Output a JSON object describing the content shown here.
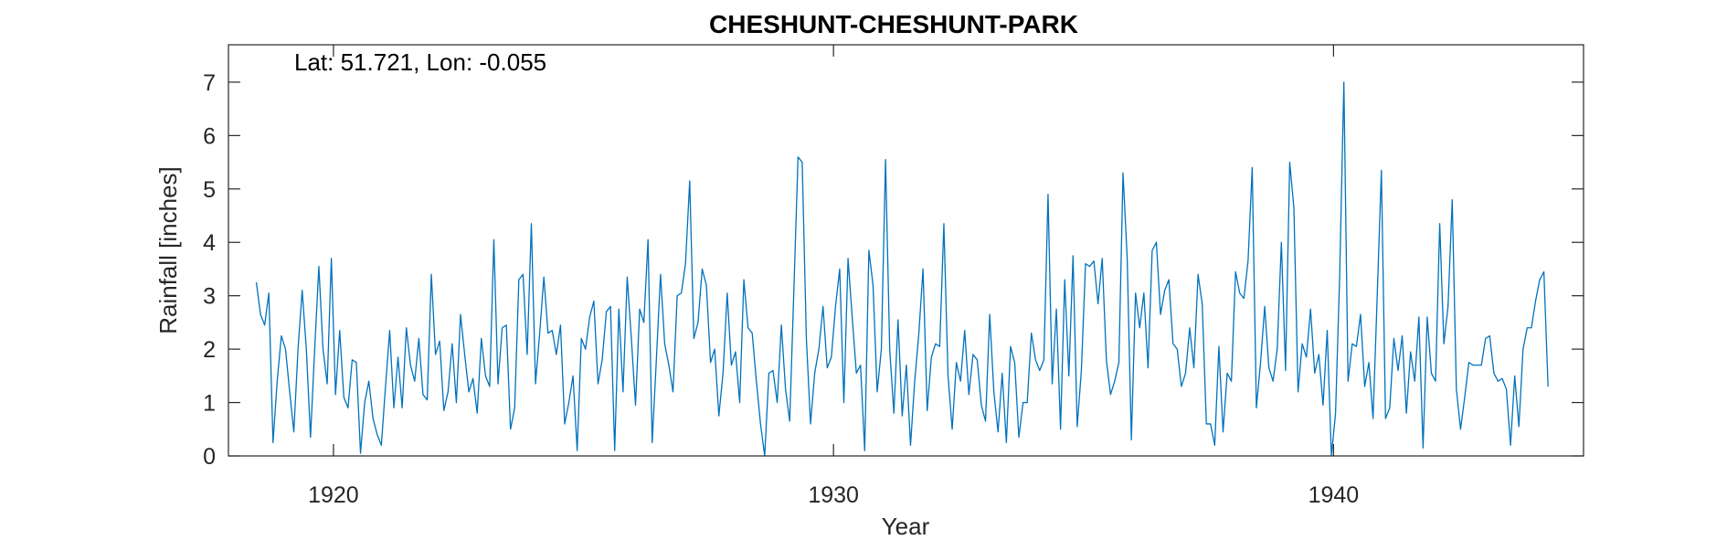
{
  "chart_data": {
    "type": "line",
    "title": "CHESHUNT-CHESHUNT-PARK",
    "xlabel": "Year",
    "ylabel": "Rainfall [inches]",
    "annotation": "Lat: 51.721, Lon: -0.055",
    "xlim": [
      1917.9,
      1945
    ],
    "ylim": [
      0,
      7.7
    ],
    "xticks": [
      1920,
      1930,
      1940
    ],
    "yticks": [
      0,
      1,
      2,
      3,
      4,
      5,
      6,
      7
    ],
    "grid": false,
    "series_color": "#0072bd",
    "series": [
      {
        "x_start": 1918.458,
        "x_step": 0.08333,
        "values": [
          3.25,
          2.65,
          2.45,
          3.05,
          0.25,
          1.4,
          2.25,
          2.0,
          1.2,
          0.45,
          2.0,
          3.1,
          2.0,
          0.35,
          2.0,
          3.55,
          2.0,
          1.35,
          3.7,
          1.15,
          2.35,
          1.1,
          0.9,
          1.8,
          1.75,
          0.05,
          1.0,
          1.4,
          0.7,
          0.4,
          0.2,
          1.3,
          2.35,
          0.9,
          1.85,
          0.9,
          2.4,
          1.7,
          1.4,
          2.2,
          1.15,
          1.05,
          3.4,
          1.9,
          2.15,
          0.85,
          1.2,
          2.1,
          1.0,
          2.65,
          1.9,
          1.2,
          1.45,
          0.8,
          2.2,
          1.5,
          1.3,
          4.05,
          1.35,
          2.4,
          2.45,
          0.5,
          0.9,
          3.3,
          3.4,
          1.9,
          4.35,
          1.35,
          2.3,
          3.35,
          2.3,
          2.35,
          1.9,
          2.45,
          0.6,
          1.0,
          1.5,
          0.1,
          2.2,
          2.0,
          2.6,
          2.9,
          1.35,
          1.8,
          2.7,
          2.8,
          0.1,
          2.75,
          1.2,
          3.35,
          2.2,
          0.95,
          2.75,
          2.5,
          4.05,
          0.25,
          1.8,
          3.4,
          2.1,
          1.7,
          1.2,
          3.0,
          3.05,
          3.6,
          5.15,
          2.2,
          2.5,
          3.5,
          3.2,
          1.75,
          2.0,
          0.75,
          1.55,
          3.05,
          1.7,
          1.95,
          1.0,
          3.3,
          2.4,
          2.3,
          1.4,
          0.6,
          0.0,
          1.55,
          1.6,
          1.0,
          2.45,
          1.25,
          0.65,
          3.1,
          5.6,
          5.5,
          2.2,
          0.6,
          1.55,
          2.0,
          2.8,
          1.65,
          1.85,
          2.8,
          3.5,
          1.0,
          3.7,
          2.6,
          1.55,
          1.7,
          0.1,
          3.85,
          3.2,
          1.2,
          2.0,
          5.55,
          2.0,
          0.8,
          2.55,
          0.75,
          1.7,
          0.2,
          1.4,
          2.3,
          3.5,
          0.85,
          1.85,
          2.1,
          2.05,
          4.35,
          1.5,
          0.5,
          1.75,
          1.4,
          2.35,
          1.15,
          1.9,
          1.8,
          0.95,
          0.65,
          2.65,
          1.2,
          0.45,
          1.55,
          0.25,
          2.05,
          1.75,
          0.35,
          1.0,
          1.0,
          2.3,
          1.8,
          1.6,
          1.8,
          4.9,
          1.35,
          2.75,
          0.5,
          3.3,
          1.5,
          3.75,
          0.55,
          1.6,
          3.6,
          3.55,
          3.65,
          2.85,
          3.7,
          1.8,
          1.15,
          1.4,
          1.75,
          5.3,
          3.7,
          0.3,
          3.05,
          2.4,
          3.05,
          1.65,
          3.85,
          4.0,
          2.65,
          3.1,
          3.3,
          2.1,
          2.0,
          1.3,
          1.55,
          2.4,
          1.65,
          3.4,
          2.85,
          0.6,
          0.6,
          0.2,
          2.05,
          0.45,
          1.55,
          1.4,
          3.45,
          3.05,
          2.95,
          3.65,
          5.4,
          0.9,
          1.75,
          2.8,
          1.65,
          1.4,
          2.0,
          4.0,
          1.6,
          5.5,
          4.65,
          1.2,
          2.1,
          1.85,
          2.75,
          1.55,
          1.9,
          0.95,
          2.35,
          0.0,
          0.8,
          3.4,
          7.0,
          1.4,
          2.1,
          2.05,
          2.65,
          1.3,
          1.75,
          0.7,
          3.0,
          5.35,
          0.7,
          0.9,
          2.2,
          1.6,
          2.25,
          0.8,
          1.95,
          1.4,
          2.6,
          0.15,
          2.6,
          1.55,
          1.4,
          4.35,
          2.1,
          2.8,
          4.8,
          1.25,
          0.5,
          1.1,
          1.75,
          1.7,
          1.7,
          1.7,
          2.2,
          2.25,
          1.55,
          1.4,
          1.45,
          1.25,
          0.2,
          1.5,
          0.55,
          2.0,
          2.4,
          2.4,
          2.9,
          3.3,
          3.45,
          1.3
        ]
      }
    ]
  }
}
